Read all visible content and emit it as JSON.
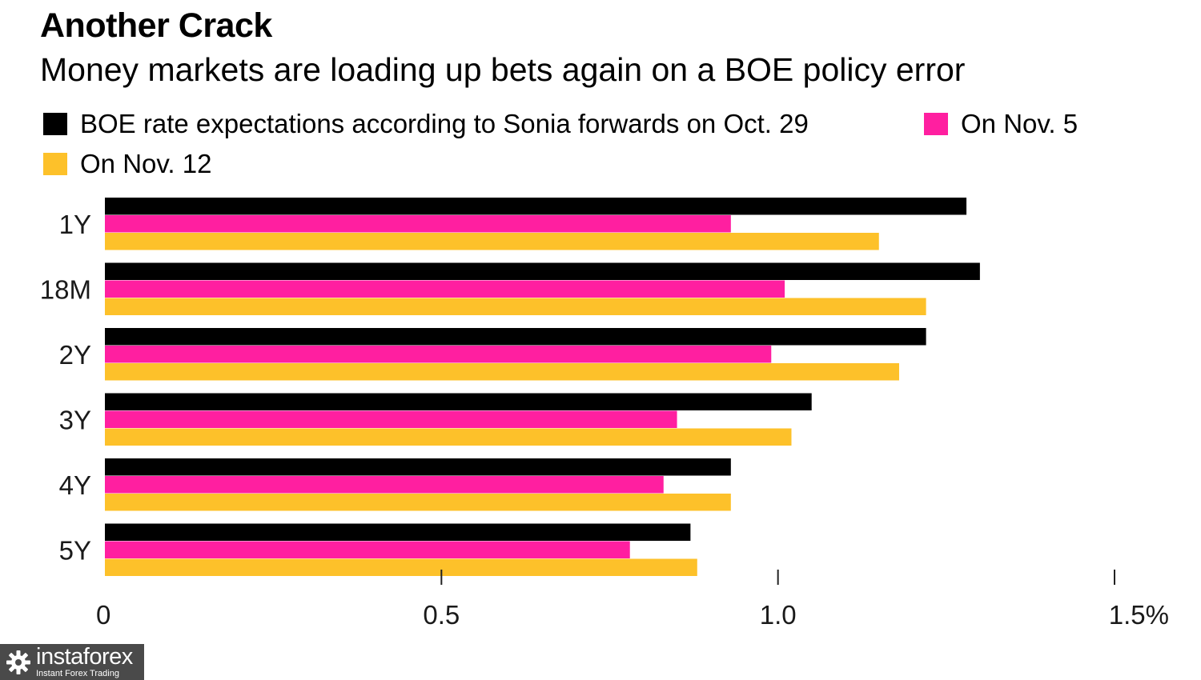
{
  "chart_data": {
    "type": "bar",
    "orientation": "horizontal",
    "title": "Another Crack",
    "subtitle": "Money markets are loading up bets again on a BOE policy error",
    "categories": [
      "1Y",
      "18M",
      "2Y",
      "3Y",
      "4Y",
      "5Y"
    ],
    "series": [
      {
        "name": "BOE rate expectations according to Sonia forwards on Oct. 29",
        "color": "#000000",
        "values": [
          1.28,
          1.3,
          1.22,
          1.05,
          0.93,
          0.87
        ]
      },
      {
        "name": "On Nov. 5",
        "color": "#ff1fa0",
        "values": [
          0.93,
          1.01,
          0.99,
          0.85,
          0.83,
          0.78
        ]
      },
      {
        "name": "On Nov. 12",
        "color": "#fdc12a",
        "values": [
          1.15,
          1.22,
          1.18,
          1.02,
          0.93,
          0.88
        ]
      }
    ],
    "xlim": [
      0,
      1.5
    ],
    "x_ticks": [
      {
        "value": 0,
        "label": "0"
      },
      {
        "value": 0.5,
        "label": "0.5"
      },
      {
        "value": 1.0,
        "label": "1.0"
      },
      {
        "value": 1.5,
        "label": "1.5%"
      }
    ],
    "legend_position": "top-left",
    "grid": false
  },
  "watermark": {
    "brand": "instaforex",
    "tagline": "Instant Forex Trading",
    "icon": "gear-logo-icon"
  }
}
